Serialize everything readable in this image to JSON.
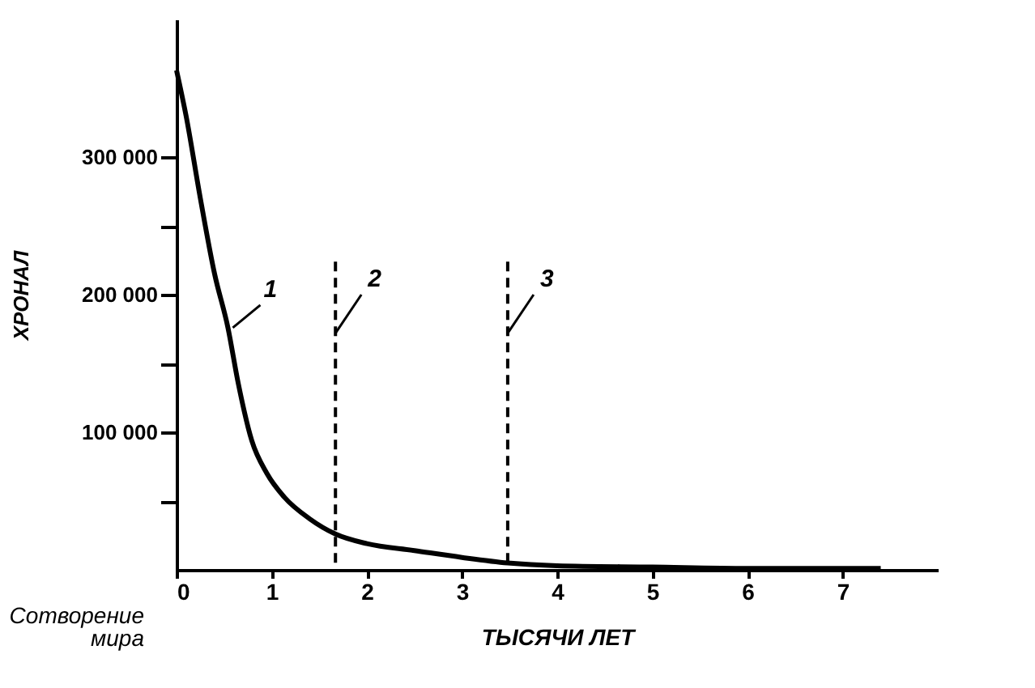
{
  "chart_data": {
    "type": "line",
    "xlabel": "ТЫСЯЧИ ЛЕТ",
    "ylabel": "ХРОНАЛ",
    "x": [
      0,
      0.1,
      0.25,
      0.4,
      0.54,
      0.65,
      0.79,
      0.95,
      1.13,
      1.4,
      1.67,
      2,
      2.5,
      3,
      3.48,
      4,
      5,
      6,
      7,
      7.4
    ],
    "series": [
      {
        "color": "#000000",
        "values": [
          363000,
          330000,
          270000,
          215000,
          176000,
          135000,
          94000,
          70000,
          53000,
          37000,
          26000,
          19000,
          14000,
          9000,
          5000,
          3000,
          2000,
          1000,
          1000,
          1000
        ]
      }
    ],
    "xlim": [
      0,
      8
    ],
    "xticks": [
      0,
      1,
      2,
      3,
      4,
      5,
      6,
      7
    ],
    "ylim": [
      0,
      400000
    ],
    "yticks": [
      {
        "value": 50000,
        "label": null
      },
      {
        "value": 100000,
        "label": "100 000"
      },
      {
        "value": 150000,
        "label": null
      },
      {
        "value": 200000,
        "label": "200 000"
      },
      {
        "value": 250000,
        "label": null
      },
      {
        "value": 300000,
        "label": "300 000"
      }
    ],
    "ref_lines": [
      {
        "axis": "x",
        "value": 1.67,
        "label": "2",
        "line_style": "dashed",
        "color": "#000000"
      },
      {
        "axis": "x",
        "value": 3.48,
        "label": "3",
        "line_style": "dashed",
        "color": "#000000"
      }
    ],
    "annotations": [
      {
        "text": "1",
        "x": 0.54,
        "y": 176000
      },
      "Сотворение мира"
    ],
    "grid": false,
    "line_style": "solid",
    "marker": "none"
  }
}
